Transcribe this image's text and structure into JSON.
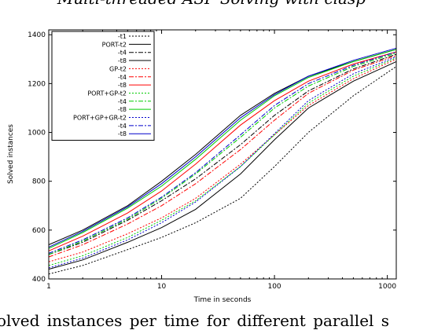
{
  "captions": {
    "top": "Multi-threaded ASP Solving with clasp",
    "bottom": "olved instances per time for different parallel s"
  },
  "chart_data": {
    "type": "line",
    "title": "",
    "xlabel": "Time in seconds",
    "ylabel": "Solved instances",
    "xscale": "log",
    "xlim": [
      1,
      1200
    ],
    "ylim": [
      400,
      1420
    ],
    "xticks": [
      1,
      10,
      100,
      1000
    ],
    "xtick_labels": [
      "1",
      "10",
      "100",
      "1000"
    ],
    "yticks": [
      400,
      600,
      800,
      1000,
      1200,
      1400
    ],
    "ytick_labels": [
      "400",
      "600",
      "800",
      "1000",
      "1200",
      "1400"
    ],
    "grid": false,
    "legend_position": "top-left",
    "series": [
      {
        "name": "-t1",
        "color": "#000000",
        "dash": "2,2",
        "x": [
          1,
          2,
          5,
          10,
          20,
          50,
          100,
          200,
          500,
          1200
        ],
        "y": [
          420,
          455,
          520,
          570,
          630,
          730,
          860,
          1000,
          1150,
          1270
        ]
      },
      {
        "name": "PORT-t2",
        "color": "#000000",
        "dash": "",
        "x": [
          1,
          2,
          5,
          10,
          20,
          50,
          100,
          200,
          500,
          1200
        ],
        "y": [
          440,
          478,
          550,
          610,
          685,
          830,
          970,
          1100,
          1210,
          1290
        ]
      },
      {
        "name": "-t4",
        "color": "#000000",
        "dash": "6,2,2,2",
        "x": [
          1,
          2,
          5,
          10,
          20,
          50,
          100,
          200,
          500,
          1200
        ],
        "y": [
          500,
          550,
          640,
          720,
          810,
          950,
          1070,
          1170,
          1260,
          1320
        ]
      },
      {
        "name": "-t8",
        "color": "#000000",
        "dash": "",
        "x": [
          1,
          2,
          5,
          10,
          20,
          50,
          100,
          200,
          500,
          1200
        ],
        "y": [
          540,
          600,
          700,
          800,
          910,
          1070,
          1160,
          1230,
          1290,
          1340
        ]
      },
      {
        "name": "GP-t2",
        "color": "#ff0000",
        "dash": "2,2",
        "x": [
          1,
          2,
          5,
          10,
          20,
          50,
          100,
          200,
          500,
          1200
        ],
        "y": [
          470,
          510,
          585,
          650,
          730,
          870,
          990,
          1110,
          1220,
          1300
        ]
      },
      {
        "name": "-t4",
        "color": "#ff0000",
        "dash": "6,2,2,2",
        "x": [
          1,
          2,
          5,
          10,
          20,
          50,
          100,
          200,
          500,
          1200
        ],
        "y": [
          490,
          540,
          625,
          700,
          790,
          930,
          1050,
          1160,
          1255,
          1315
        ]
      },
      {
        "name": "-t8",
        "color": "#ff0000",
        "dash": "",
        "x": [
          1,
          2,
          5,
          10,
          20,
          50,
          100,
          200,
          500,
          1200
        ],
        "y": [
          515,
          575,
          670,
          760,
          870,
          1030,
          1130,
          1210,
          1280,
          1330
        ]
      },
      {
        "name": "PORT+GP-t2",
        "color": "#00cc00",
        "dash": "2,2",
        "x": [
          1,
          2,
          5,
          10,
          20,
          50,
          100,
          200,
          500,
          1200
        ],
        "y": [
          455,
          495,
          570,
          640,
          720,
          860,
          990,
          1120,
          1230,
          1305
        ]
      },
      {
        "name": "-t4",
        "color": "#00cc00",
        "dash": "6,2,2,2",
        "x": [
          1,
          2,
          5,
          10,
          20,
          50,
          100,
          200,
          500,
          1200
        ],
        "y": [
          500,
          555,
          645,
          730,
          830,
          980,
          1100,
          1190,
          1270,
          1325
        ]
      },
      {
        "name": "-t8",
        "color": "#00cc00",
        "dash": "",
        "x": [
          1,
          2,
          5,
          10,
          20,
          50,
          100,
          200,
          500,
          1200
        ],
        "y": [
          525,
          590,
          690,
          780,
          890,
          1050,
          1150,
          1225,
          1290,
          1340
        ]
      },
      {
        "name": "PORT+GP+GR-t2",
        "color": "#0000cc",
        "dash": "2,2",
        "x": [
          1,
          2,
          5,
          10,
          20,
          50,
          100,
          200,
          500,
          1200
        ],
        "y": [
          445,
          485,
          560,
          630,
          715,
          860,
          995,
          1130,
          1240,
          1310
        ]
      },
      {
        "name": "-t4",
        "color": "#0000cc",
        "dash": "6,2,2,2",
        "x": [
          1,
          2,
          5,
          10,
          20,
          50,
          100,
          200,
          500,
          1200
        ],
        "y": [
          505,
          560,
          650,
          735,
          835,
          990,
          1110,
          1200,
          1275,
          1330
        ]
      },
      {
        "name": "-t8",
        "color": "#0000cc",
        "dash": "",
        "x": [
          1,
          2,
          5,
          10,
          20,
          50,
          100,
          200,
          500,
          1200
        ],
        "y": [
          530,
          595,
          695,
          790,
          900,
          1060,
          1155,
          1230,
          1295,
          1345
        ]
      }
    ]
  }
}
